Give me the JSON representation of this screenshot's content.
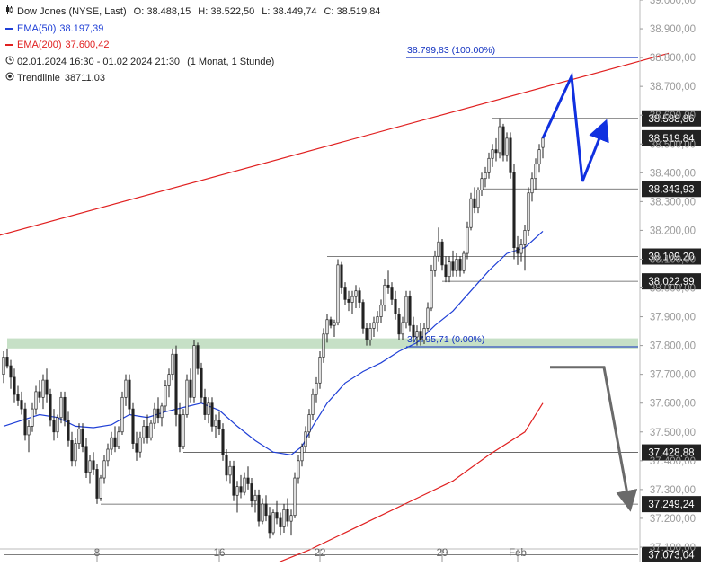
{
  "legend": {
    "instrument": "Dow Jones (NYSE, Last)",
    "ohlc": {
      "o": "O: 38.488,15",
      "h": "H: 38.522,50",
      "l": "L: 38.449,74",
      "c": "C: 38.519,84"
    },
    "ema50": {
      "label": "EMA(50)",
      "value": "38.197,39",
      "color": "#1f3fd6"
    },
    "ema200": {
      "label": "EMA(200)",
      "value": "37.600,42",
      "color": "#e02020"
    },
    "period": "02.01.2024 16:30 - 01.02.2024 21:30",
    "timeframe": "(1 Monat, 1 Stunde)",
    "trendline": "Trendlinie",
    "trendline_value": "38711.03"
  },
  "chart_data": {
    "type": "candlestick",
    "ylim": [
      37050,
      39000
    ],
    "y_ticks": [
      39000,
      38900,
      38800,
      38700,
      38600,
      38500,
      38400,
      38300,
      38200,
      38100,
      38000,
      37900,
      37800,
      37700,
      37600,
      37500,
      37400,
      37300,
      37200,
      37100
    ],
    "y_tick_labels": [
      "39.000,00",
      "38.900,00",
      "38.800,00",
      "38.700,00",
      "38.600,00",
      "38.500,00",
      "38.400,00",
      "38.300,00",
      "38.200,00",
      "38.100,00",
      "38.000,00",
      "37.900,00",
      "37.800,00",
      "37.700,00",
      "37.600,00",
      "37.500,00",
      "37.400,00",
      "37.300,00",
      "37.200,00",
      "37.100,00"
    ],
    "x_ticks": [
      {
        "label": "8",
        "bar": 26
      },
      {
        "label": "16",
        "bar": 60
      },
      {
        "label": "22",
        "bar": 88
      },
      {
        "label": "29",
        "bar": 122
      },
      {
        "label": "Feb",
        "bar": 143
      }
    ],
    "bar_count": 175,
    "candles": [
      [
        0,
        37700,
        37780,
        37670,
        37760
      ],
      [
        1,
        37760,
        37790,
        37720,
        37730
      ],
      [
        2,
        37730,
        37750,
        37650,
        37690
      ],
      [
        3,
        37690,
        37720,
        37600,
        37630
      ],
      [
        4,
        37630,
        37660,
        37590,
        37610
      ],
      [
        5,
        37610,
        37640,
        37560,
        37580
      ],
      [
        6,
        37580,
        37600,
        37470,
        37490
      ],
      [
        7,
        37490,
        37540,
        37430,
        37520
      ],
      [
        8,
        37520,
        37600,
        37500,
        37580
      ],
      [
        9,
        37580,
        37660,
        37560,
        37640
      ],
      [
        10,
        37640,
        37680,
        37600,
        37620
      ],
      [
        11,
        37620,
        37700,
        37580,
        37680
      ],
      [
        12,
        37680,
        37720,
        37600,
        37630
      ],
      [
        13,
        37630,
        37650,
        37520,
        37540
      ],
      [
        14,
        37540,
        37580,
        37470,
        37500
      ],
      [
        15,
        37500,
        37560,
        37480,
        37550
      ],
      [
        16,
        37550,
        37640,
        37530,
        37620
      ],
      [
        17,
        37620,
        37640,
        37520,
        37540
      ],
      [
        18,
        37540,
        37570,
        37450,
        37470
      ],
      [
        19,
        37470,
        37500,
        37380,
        37400
      ],
      [
        20,
        37400,
        37480,
        37380,
        37460
      ],
      [
        21,
        37460,
        37530,
        37440,
        37510
      ],
      [
        22,
        37510,
        37530,
        37430,
        37450
      ],
      [
        23,
        37450,
        37480,
        37340,
        37360
      ],
      [
        24,
        37360,
        37420,
        37320,
        37400
      ],
      [
        25,
        37400,
        37430,
        37350,
        37370
      ],
      [
        26,
        37370,
        37390,
        37250,
        37270
      ],
      [
        27,
        37270,
        37350,
        37260,
        37340
      ],
      [
        28,
        37340,
        37420,
        37320,
        37400
      ],
      [
        29,
        37400,
        37460,
        37380,
        37440
      ],
      [
        30,
        37440,
        37500,
        37420,
        37480
      ],
      [
        31,
        37480,
        37520,
        37430,
        37450
      ],
      [
        32,
        37450,
        37520,
        37440,
        37500
      ],
      [
        33,
        37500,
        37640,
        37490,
        37620
      ],
      [
        34,
        37620,
        37700,
        37590,
        37680
      ],
      [
        35,
        37680,
        37700,
        37560,
        37580
      ],
      [
        36,
        37580,
        37600,
        37440,
        37460
      ],
      [
        37,
        37460,
        37500,
        37400,
        37430
      ],
      [
        38,
        37430,
        37500,
        37410,
        37480
      ],
      [
        39,
        37480,
        37540,
        37460,
        37520
      ],
      [
        40,
        37520,
        37560,
        37460,
        37480
      ],
      [
        41,
        37480,
        37540,
        37470,
        37530
      ],
      [
        42,
        37530,
        37600,
        37510,
        37580
      ],
      [
        43,
        37580,
        37620,
        37530,
        37550
      ],
      [
        44,
        37550,
        37600,
        37520,
        37590
      ],
      [
        45,
        37590,
        37680,
        37570,
        37660
      ],
      [
        46,
        37660,
        37720,
        37620,
        37700
      ],
      [
        47,
        37700,
        37790,
        37680,
        37770
      ],
      [
        48,
        37770,
        37800,
        37520,
        37560
      ],
      [
        49,
        37560,
        37600,
        37430,
        37450
      ],
      [
        50,
        37450,
        37580,
        37440,
        37560
      ],
      [
        51,
        37560,
        37700,
        37550,
        37680
      ],
      [
        52,
        37680,
        37720,
        37600,
        37620
      ],
      [
        53,
        37620,
        37820,
        37600,
        37800
      ],
      [
        54,
        37800,
        37810,
        37700,
        37720
      ],
      [
        55,
        37720,
        37740,
        37600,
        37620
      ],
      [
        56,
        37620,
        37650,
        37540,
        37560
      ],
      [
        57,
        37560,
        37620,
        37530,
        37600
      ],
      [
        58,
        37600,
        37620,
        37500,
        37520
      ],
      [
        59,
        37520,
        37560,
        37480,
        37540
      ],
      [
        60,
        37540,
        37570,
        37490,
        37510
      ],
      [
        61,
        37510,
        37530,
        37400,
        37420
      ],
      [
        62,
        37420,
        37440,
        37330,
        37350
      ],
      [
        63,
        37350,
        37400,
        37320,
        37380
      ],
      [
        64,
        37380,
        37400,
        37260,
        37280
      ],
      [
        65,
        37280,
        37330,
        37220,
        37310
      ],
      [
        66,
        37310,
        37350,
        37270,
        37290
      ],
      [
        67,
        37290,
        37360,
        37280,
        37340
      ],
      [
        68,
        37340,
        37380,
        37300,
        37320
      ],
      [
        69,
        37320,
        37340,
        37240,
        37260
      ],
      [
        70,
        37260,
        37300,
        37220,
        37280
      ],
      [
        71,
        37280,
        37300,
        37170,
        37190
      ],
      [
        72,
        37190,
        37270,
        37180,
        37250
      ],
      [
        73,
        37250,
        37280,
        37190,
        37210
      ],
      [
        74,
        37210,
        37240,
        37130,
        37150
      ],
      [
        75,
        37150,
        37230,
        37140,
        37220
      ],
      [
        76,
        37220,
        37260,
        37180,
        37200
      ],
      [
        77,
        37200,
        37220,
        37140,
        37170
      ],
      [
        78,
        37170,
        37250,
        37150,
        37230
      ],
      [
        79,
        37230,
        37270,
        37170,
        37190
      ],
      [
        80,
        37190,
        37230,
        37140,
        37210
      ],
      [
        81,
        37210,
        37360,
        37200,
        37340
      ],
      [
        82,
        37340,
        37420,
        37320,
        37400
      ],
      [
        83,
        37400,
        37460,
        37380,
        37450
      ],
      [
        84,
        37450,
        37520,
        37430,
        37500
      ],
      [
        85,
        37500,
        37580,
        37480,
        37560
      ],
      [
        86,
        37560,
        37650,
        37540,
        37630
      ],
      [
        87,
        37630,
        37690,
        37600,
        37670
      ],
      [
        88,
        37670,
        37780,
        37650,
        37760
      ],
      [
        89,
        37760,
        37860,
        37740,
        37840
      ],
      [
        90,
        37840,
        37910,
        37810,
        37890
      ],
      [
        91,
        37890,
        37900,
        37860,
        37870
      ],
      [
        92,
        37870,
        37890,
        37830,
        37880
      ],
      [
        93,
        37880,
        38100,
        37870,
        38080
      ],
      [
        94,
        38080,
        38090,
        37980,
        38000
      ],
      [
        95,
        38000,
        38020,
        37940,
        37960
      ],
      [
        96,
        37960,
        37990,
        37920,
        37950
      ],
      [
        97,
        37950,
        37990,
        37910,
        37970
      ],
      [
        98,
        37970,
        38010,
        37930,
        37990
      ],
      [
        99,
        37990,
        38000,
        37930,
        37950
      ],
      [
        100,
        37950,
        37960,
        37840,
        37860
      ],
      [
        101,
        37860,
        37880,
        37800,
        37820
      ],
      [
        102,
        37820,
        37880,
        37800,
        37860
      ],
      [
        103,
        37860,
        37900,
        37830,
        37880
      ],
      [
        104,
        37880,
        37920,
        37850,
        37900
      ],
      [
        105,
        37900,
        37960,
        37880,
        37940
      ],
      [
        106,
        37940,
        38030,
        37920,
        38010
      ],
      [
        107,
        38010,
        38060,
        37980,
        38000
      ],
      [
        108,
        38000,
        38020,
        37940,
        37960
      ],
      [
        109,
        37960,
        37990,
        37890,
        37910
      ],
      [
        110,
        37910,
        37930,
        37820,
        37840
      ],
      [
        111,
        37840,
        37900,
        37820,
        37880
      ],
      [
        112,
        37880,
        37990,
        37860,
        37970
      ],
      [
        113,
        37970,
        37990,
        37850,
        37870
      ],
      [
        114,
        37870,
        37900,
        37810,
        37830
      ],
      [
        115,
        37830,
        37870,
        37800,
        37850
      ],
      [
        116,
        37850,
        37880,
        37800,
        37820
      ],
      [
        117,
        37820,
        37880,
        37805,
        37860
      ],
      [
        118,
        37860,
        37950,
        37850,
        37930
      ],
      [
        119,
        37930,
        38080,
        37920,
        38060
      ],
      [
        120,
        38060,
        38130,
        38040,
        38110
      ],
      [
        121,
        38110,
        38210,
        38090,
        38160
      ],
      [
        122,
        38160,
        38170,
        38060,
        38080
      ],
      [
        123,
        38080,
        38110,
        38020,
        38040
      ],
      [
        124,
        38040,
        38110,
        38020,
        38090
      ],
      [
        125,
        38090,
        38130,
        38040,
        38060
      ],
      [
        126,
        38060,
        38120,
        38040,
        38100
      ],
      [
        127,
        38100,
        38110,
        38040,
        38060
      ],
      [
        128,
        38060,
        38130,
        38050,
        38120
      ],
      [
        129,
        38120,
        38230,
        38100,
        38210
      ],
      [
        130,
        38210,
        38330,
        38200,
        38310
      ],
      [
        131,
        38310,
        38350,
        38260,
        38280
      ],
      [
        132,
        38280,
        38350,
        38260,
        38340
      ],
      [
        133,
        38340,
        38400,
        38320,
        38380
      ],
      [
        134,
        38380,
        38420,
        38350,
        38400
      ],
      [
        135,
        38400,
        38470,
        38380,
        38450
      ],
      [
        136,
        38450,
        38500,
        38420,
        38480
      ],
      [
        137,
        38480,
        38520,
        38440,
        38470
      ],
      [
        138,
        38470,
        38590,
        38450,
        38560
      ],
      [
        139,
        38560,
        38570,
        38440,
        38460
      ],
      [
        140,
        38460,
        38540,
        38440,
        38520
      ],
      [
        141,
        38520,
        38540,
        38380,
        38400
      ],
      [
        142,
        38400,
        38430,
        38100,
        38140
      ],
      [
        143,
        38140,
        38180,
        38080,
        38120
      ],
      [
        144,
        38120,
        38170,
        38090,
        38150
      ],
      [
        145,
        38150,
        38220,
        38060,
        38200
      ],
      [
        146,
        38200,
        38350,
        38180,
        38330
      ],
      [
        147,
        38330,
        38400,
        38300,
        38380
      ],
      [
        148,
        38380,
        38450,
        38340,
        38430
      ],
      [
        149,
        38430,
        38500,
        38400,
        38480
      ],
      [
        150,
        38488,
        38522,
        38450,
        38520
      ]
    ],
    "ema50": [
      [
        0,
        37520
      ],
      [
        5,
        37540
      ],
      [
        10,
        37560
      ],
      [
        15,
        37550
      ],
      [
        20,
        37520
      ],
      [
        25,
        37515
      ],
      [
        30,
        37525
      ],
      [
        35,
        37560
      ],
      [
        40,
        37550
      ],
      [
        45,
        37570
      ],
      [
        50,
        37585
      ],
      [
        55,
        37600
      ],
      [
        60,
        37575
      ],
      [
        65,
        37520
      ],
      [
        70,
        37470
      ],
      [
        75,
        37430
      ],
      [
        80,
        37420
      ],
      [
        83,
        37450
      ],
      [
        86,
        37520
      ],
      [
        90,
        37600
      ],
      [
        95,
        37670
      ],
      [
        100,
        37710
      ],
      [
        105,
        37740
      ],
      [
        110,
        37780
      ],
      [
        115,
        37810
      ],
      [
        120,
        37870
      ],
      [
        125,
        37920
      ],
      [
        130,
        37990
      ],
      [
        135,
        38060
      ],
      [
        140,
        38120
      ],
      [
        145,
        38140
      ],
      [
        150,
        38197
      ]
    ],
    "ema200": [
      [
        75,
        37040
      ],
      [
        85,
        37090
      ],
      [
        95,
        37150
      ],
      [
        105,
        37210
      ],
      [
        115,
        37270
      ],
      [
        125,
        37330
      ],
      [
        135,
        37420
      ],
      [
        145,
        37500
      ],
      [
        150,
        37600
      ]
    ],
    "horizontal_levels": [
      {
        "value": 38588.86,
        "label": "38.588,86",
        "from_bar": 136
      },
      {
        "value": 38343.93,
        "label": "38.343,93",
        "from_bar": 133
      },
      {
        "value": 38109.2,
        "label": "38.109,20",
        "from_bar": 90
      },
      {
        "value": 38022.99,
        "label": "38.022,99",
        "from_bar": 122
      },
      {
        "value": 37428.88,
        "label": "37.428,88",
        "from_bar": 50
      },
      {
        "value": 37249.24,
        "label": "37.249,24",
        "from_bar": 27
      },
      {
        "value": 37073.04,
        "label": "37.073,04",
        "from_bar": 0
      }
    ],
    "current_price": {
      "value": 38519.84,
      "label": "38.519,84"
    },
    "fibonacci": [
      {
        "value": 38799.83,
        "label": "38.799,83 (100.00%)",
        "from_bar": 112
      },
      {
        "value": 37795.71,
        "label": "37.795,71 (0.00%)",
        "from_bar": 112
      }
    ],
    "trendline": {
      "points": [
        [
          -2,
          38180
        ],
        [
          185,
          38815
        ]
      ],
      "color": "#e02020"
    },
    "support_zone": {
      "low": 37790,
      "high": 37825
    },
    "projection_up": [
      [
        150,
        38520
      ],
      [
        158,
        38735
      ],
      [
        161,
        38370
      ],
      [
        167,
        38560
      ]
    ],
    "projection_down": [
      [
        152,
        37725
      ],
      [
        167,
        37725
      ],
      [
        174,
        37250
      ]
    ],
    "colors": {
      "candle": "#222222",
      "grid": "#d8d8d8",
      "zone": "#c6e0c6",
      "projection_up": "#1030e0",
      "projection_down": "#6a6a6a",
      "axis_label_bg": "#222222",
      "fib": "#1030c0"
    }
  }
}
